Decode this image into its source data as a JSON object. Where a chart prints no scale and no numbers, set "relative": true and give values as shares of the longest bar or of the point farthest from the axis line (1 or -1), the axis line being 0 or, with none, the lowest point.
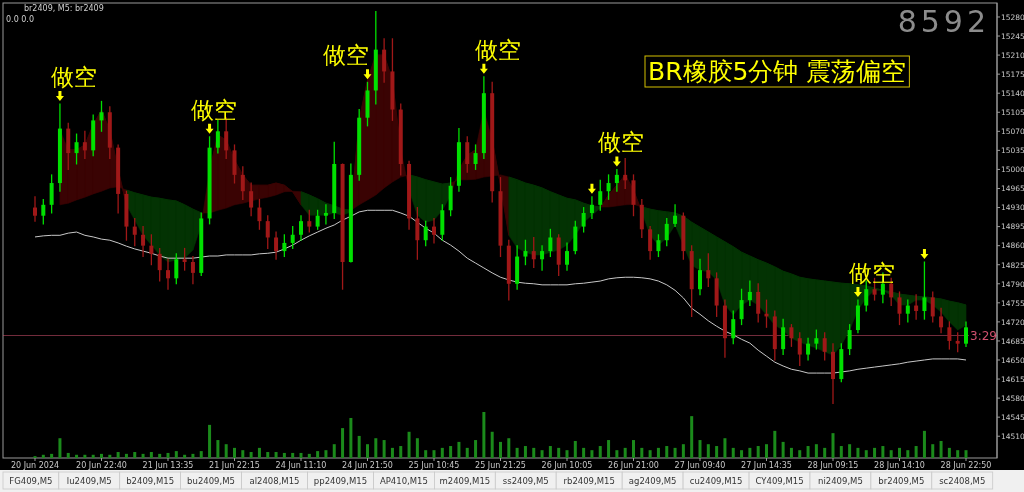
{
  "chart_data": [
    {
      "type": "candlestick",
      "title": "BR橡胶5分钟 震荡偏空",
      "subtitle": "br2409, M5:  br2409",
      "annotations": [
        "0.0  0.0",
        "8592",
        "3:29",
        "做空",
        "做空",
        "做空",
        "做空",
        "做空",
        "做空",
        "FG409,M5",
        "lu2409,M5",
        "b2409,M15",
        "bu2409,M5",
        "al2408,M15",
        "pp2409,M15",
        "AP410,M15",
        "m2409,M15",
        "ss2409,M5",
        "rb2409,M15",
        "ag2409,M5",
        "cu2409,M15",
        "CY409,M15",
        "ni2409,M5",
        "br2409,M5",
        "sc2408,M5"
      ],
      "categories": [
        "20 Jun 2024",
        null,
        null,
        null,
        null,
        null,
        null,
        null,
        "20 Jun 22:40",
        null,
        null,
        null,
        null,
        null,
        null,
        null,
        "21 Jun 13:35",
        null,
        null,
        null,
        null,
        null,
        null,
        null,
        "21 Jun 22:15",
        null,
        null,
        null,
        null,
        null,
        null,
        null,
        "24 Jun 11:10",
        null,
        null,
        null,
        null,
        null,
        null,
        null,
        "24 Jun 21:50",
        null,
        null,
        null,
        null,
        null,
        null,
        null,
        "25 Jun 10:45",
        null,
        null,
        null,
        null,
        null,
        null,
        null,
        "25 Jun 21:25",
        null,
        null,
        null,
        null,
        null,
        null,
        null,
        "26 Jun 10:05",
        null,
        null,
        null,
        null,
        null,
        null,
        null,
        "26 Jun 21:00",
        null,
        null,
        null,
        null,
        null,
        null,
        null,
        "27 Jun 09:40",
        null,
        null,
        null,
        null,
        null,
        null,
        null,
        "27 Jun 14:35",
        null,
        null,
        null,
        null,
        null,
        null,
        null,
        "28 Jun 09:15",
        null,
        null,
        null,
        null,
        null,
        null,
        null,
        "28 Jun 14:10",
        null,
        null,
        null,
        null,
        null,
        null,
        null,
        "28 Jun 22:50"
      ],
      "ylim": [
        14470,
        15302
      ],
      "yticks": [
        15280,
        15245,
        15210,
        15175,
        15140,
        15105,
        15070,
        15035,
        15000,
        14965,
        14930,
        14895,
        14860,
        14825,
        14790,
        14755,
        14720,
        14685,
        14650,
        14615,
        14580,
        14545,
        14510
      ],
      "ref_lines": [
        {
          "axis": "y",
          "value": 14695,
          "color": "#d0506e"
        }
      ],
      "series": [
        {
          "type": "line",
          "color": "#3a0303",
          "upper": [
            null,
            null,
            null,
            15072,
            15036,
            15036,
            15045,
            15082,
            15109,
            15072,
            14999,
            14935,
            null,
            null,
            null,
            null,
            null,
            null,
            null,
            null,
            14898,
            14999,
            15063,
            15054,
            15017,
            14990,
            14971,
            14971,
            14971,
            14975,
            14971,
            14959,
            14935,
            null,
            null,
            null,
            null,
            null,
            14922,
            15091,
            15164,
            15210,
            15210,
            15164,
            15036,
            14962,
            null,
            null,
            null,
            null,
            14953,
            14999,
            15026,
            15036,
            15109,
            15054,
            14971,
            14879,
            null,
            null,
            null,
            null,
            null,
            null,
            null,
            null,
            null,
            null,
            14929,
            14953,
            14971,
            14990,
            14962,
            14922,
            null,
            null,
            null,
            null,
            null,
            null,
            null,
            null,
            null,
            null,
            null,
            null,
            null,
            null,
            null,
            null,
            null,
            null,
            null,
            null,
            null,
            null,
            null,
            null,
            null,
            null,
            null,
            null,
            null,
            null,
            null,
            null,
            null,
            null,
            null,
            null,
            null,
            null,
            null
          ],
          "values": [
            null,
            null,
            null,
            null,
            15036,
            15036,
            15045,
            15082,
            15109,
            15072,
            14999,
            14935,
            null,
            null,
            null,
            null,
            null,
            null,
            null,
            null,
            null,
            14999,
            15063,
            15054,
            15017,
            14990,
            14971,
            14971,
            14971,
            14975,
            14971,
            14959,
            14935,
            null,
            null,
            null,
            null,
            null,
            14922,
            15091,
            15164,
            15210,
            15210,
            15164,
            15036,
            null,
            null,
            null,
            null,
            null,
            null,
            14999,
            15026,
            15036,
            null,
            15054,
            14971,
            14879,
            null,
            null,
            null,
            null,
            null,
            null,
            null,
            null,
            null,
            null,
            14929,
            14953,
            14971,
            14990,
            14962,
            14922,
            null,
            null,
            null,
            null,
            null,
            null,
            null,
            null,
            null,
            null,
            null,
            null,
            null,
            null,
            null,
            null,
            null,
            null,
            null,
            null,
            null,
            null,
            null,
            null,
            null,
            null,
            null,
            null,
            null,
            null,
            null,
            null,
            null,
            null,
            null,
            null,
            null,
            null,
            null
          ],
          "lower": [
            null,
            null,
            null,
            14935,
            14938,
            14944,
            14949,
            14955,
            14960,
            14966,
            14968,
            14962,
            null,
            null,
            null,
            null,
            null,
            null,
            null,
            null,
            14920,
            14920,
            14925,
            14929,
            14935,
            14938,
            14942,
            14946,
            14949,
            14953,
            14959,
            14960,
            14959,
            null,
            null,
            null,
            null,
            null,
            14925,
            14935,
            14944,
            14953,
            14966,
            14977,
            14986,
            14990,
            null,
            null,
            null,
            null,
            14975,
            14981,
            14981,
            14982,
            14986,
            14988,
            14990,
            14986,
            null,
            null,
            null,
            null,
            null,
            null,
            null,
            null,
            null,
            null,
            14931,
            14931,
            14933,
            14935,
            14936,
            14931,
            null,
            null,
            null,
            null,
            null,
            null,
            null,
            null,
            null,
            null,
            null,
            null,
            null,
            null,
            null,
            null,
            null,
            null,
            null,
            null,
            null,
            null,
            null,
            null,
            null,
            null,
            null,
            null,
            null,
            null,
            null,
            null,
            null,
            null,
            null,
            null,
            null,
            null,
            null
          ]
        },
        {
          "type": "line",
          "color": "#033303",
          "upper": [
            null,
            null,
            null,
            null,
            null,
            null,
            null,
            null,
            null,
            null,
            null,
            14962,
            14957,
            14953,
            14949,
            14947,
            14944,
            14942,
            14935,
            14927,
            14920,
            null,
            null,
            null,
            null,
            null,
            null,
            null,
            null,
            null,
            null,
            null,
            14959,
            14953,
            14946,
            14938,
            14933,
            14927,
            14925,
            null,
            null,
            null,
            null,
            null,
            null,
            14990,
            14986,
            14981,
            14977,
            14973,
            14975,
            null,
            null,
            null,
            null,
            null,
            null,
            14986,
            14981,
            14975,
            14971,
            14966,
            14959,
            14953,
            14947,
            14944,
            14938,
            14933,
            14931,
            null,
            null,
            null,
            null,
            14931,
            14927,
            14924,
            14922,
            14920,
            14914,
            14903,
            14894,
            14885,
            14876,
            14867,
            14858,
            14848,
            14841,
            14834,
            14828,
            14821,
            14813,
            14808,
            14802,
            14799,
            14797,
            14795,
            14793,
            14791,
            14790,
            14788,
            14786,
            14782,
            14778,
            14775,
            14771,
            14769,
            14767,
            14766,
            14764,
            14762,
            14758,
            14755,
            14751
          ],
          "values": [
            null,
            null,
            null,
            null,
            null,
            null,
            null,
            null,
            null,
            null,
            null,
            14962,
            14957,
            14953,
            14949,
            14947,
            14944,
            14942,
            14935,
            14927,
            14920,
            null,
            null,
            null,
            null,
            null,
            null,
            null,
            null,
            null,
            null,
            null,
            14959,
            14953,
            14946,
            14938,
            14933,
            14927,
            14925,
            null,
            null,
            null,
            null,
            null,
            null,
            14990,
            14986,
            14981,
            14977,
            14973,
            14975,
            null,
            null,
            null,
            null,
            null,
            null,
            14986,
            14981,
            14975,
            14971,
            14966,
            14959,
            14953,
            14947,
            14944,
            14938,
            14933,
            14931,
            null,
            null,
            null,
            null,
            14931,
            14927,
            14924,
            14922,
            14920,
            14914,
            14903,
            14894,
            14885,
            14876,
            14867,
            14858,
            14848,
            14841,
            14834,
            14828,
            14821,
            14813,
            14808,
            14802,
            14799,
            14797,
            14795,
            14793,
            14791,
            14790,
            14788,
            14786,
            14782,
            14778,
            14775,
            14771,
            14769,
            14767,
            14766,
            14764,
            14762,
            14758,
            14755,
            14751
          ],
          "lower": [
            null,
            null,
            null,
            null,
            null,
            null,
            null,
            null,
            null,
            null,
            null,
            14935,
            14907,
            14879,
            14861,
            14843,
            14830,
            14834,
            14837,
            14852,
            14898,
            null,
            null,
            null,
            null,
            null,
            null,
            null,
            null,
            null,
            null,
            null,
            14935,
            14916,
            14916,
            14916,
            14920,
            14916,
            14922,
            null,
            null,
            null,
            null,
            null,
            null,
            14962,
            14916,
            14903,
            14907,
            14925,
            14953,
            null,
            null,
            null,
            null,
            null,
            null,
            14879,
            14856,
            14848,
            14843,
            14843,
            14848,
            14852,
            14861,
            14879,
            14903,
            14916,
            14929,
            null,
            null,
            null,
            null,
            14922,
            14879,
            14861,
            14874,
            14898,
            14861,
            14824,
            14815,
            14812,
            14797,
            14751,
            14733,
            14751,
            14760,
            14751,
            14733,
            14714,
            14705,
            14690,
            14683,
            14677,
            14672,
            14665,
            14659,
            14677,
            14705,
            14742,
            14764,
            14778,
            14778,
            14769,
            14751,
            14751,
            14760,
            14760,
            14751,
            14738,
            14720,
            14705,
            14714
          ]
        },
        {
          "type": "line",
          "color": "#c8c8c8",
          "values": [
            14876,
            14878,
            14879,
            14879,
            14883,
            14885,
            14879,
            14876,
            14872,
            14870,
            14865,
            14859,
            14854,
            14850,
            14846,
            14841,
            14837,
            14837,
            14837,
            14837,
            14839,
            14841,
            14841,
            14843,
            14843,
            14843,
            14843,
            14845,
            14846,
            14848,
            14854,
            14861,
            14870,
            14878,
            14885,
            14892,
            14898,
            14907,
            14914,
            14922,
            14925,
            14925,
            14925,
            14925,
            14920,
            14914,
            14903,
            14892,
            14883,
            14870,
            14861,
            14850,
            14837,
            14828,
            14819,
            14810,
            14802,
            14797,
            14793,
            14791,
            14790,
            14788,
            14788,
            14788,
            14788,
            14790,
            14791,
            14793,
            14795,
            14799,
            14801,
            14802,
            14802,
            14801,
            14799,
            14795,
            14788,
            14778,
            14764,
            14745,
            14734,
            14722,
            14712,
            14703,
            14696,
            14688,
            14681,
            14668,
            14657,
            14646,
            14639,
            14633,
            14630,
            14626,
            14626,
            14626,
            14626,
            14628,
            14630,
            14633,
            14635,
            14637,
            14639,
            14641,
            14643,
            14646,
            14648,
            14650,
            14652,
            14652,
            14652,
            14652,
            14650
          ]
        },
        {
          "type": "candlestick",
          "ohlc": [
            [
              14930,
              14950,
              14905,
              14915
            ],
            [
              14915,
              14945,
              14900,
              14935
            ],
            [
              14935,
              14990,
              14920,
              14975
            ],
            [
              14975,
              15120,
              14960,
              15075
            ],
            [
              15075,
              15085,
              15000,
              15030
            ],
            [
              15030,
              15065,
              15010,
              15050
            ],
            [
              15050,
              15070,
              15020,
              15035
            ],
            [
              15035,
              15100,
              15025,
              15090
            ],
            [
              15090,
              15125,
              15070,
              15105
            ],
            [
              15105,
              15115,
              15020,
              15040
            ],
            [
              15040,
              15045,
              14920,
              14955
            ],
            [
              14955,
              14960,
              14870,
              14895
            ],
            [
              14895,
              14910,
              14860,
              14880
            ],
            [
              14880,
              14895,
              14840,
              14860
            ],
            [
              14860,
              14880,
              14825,
              14845
            ],
            [
              14845,
              14855,
              14795,
              14815
            ],
            [
              14815,
              14835,
              14780,
              14800
            ],
            [
              14800,
              14845,
              14790,
              14835
            ],
            [
              14835,
              14855,
              14815,
              14830
            ],
            [
              14830,
              14840,
              14790,
              14810
            ],
            [
              14810,
              14920,
              14805,
              14910
            ],
            [
              14910,
              15060,
              14900,
              15040
            ],
            [
              15040,
              15090,
              15030,
              15070
            ],
            [
              15070,
              15095,
              15020,
              15035
            ],
            [
              15035,
              15045,
              14975,
              14990
            ],
            [
              14990,
              15005,
              14945,
              14960
            ],
            [
              14960,
              14975,
              14915,
              14930
            ],
            [
              14930,
              14945,
              14890,
              14905
            ],
            [
              14905,
              14915,
              14855,
              14875
            ],
            [
              14875,
              14885,
              14835,
              14850
            ],
            [
              14850,
              14880,
              14840,
              14865
            ],
            [
              14865,
              14895,
              14855,
              14880
            ],
            [
              14880,
              14915,
              14870,
              14905
            ],
            [
              14905,
              14925,
              14885,
              14895
            ],
            [
              14895,
              14925,
              14890,
              14915
            ],
            [
              14915,
              14935,
              14900,
              14920
            ],
            [
              14920,
              15050,
              14910,
              15010
            ],
            [
              15010,
              15010,
              14780,
              14830
            ],
            [
              14830,
              15010,
              14830,
              14990
            ],
            [
              14990,
              15110,
              14980,
              15095
            ],
            [
              15095,
              15160,
              15080,
              15145
            ],
            [
              15145,
              15290,
              15120,
              15220
            ],
            [
              15220,
              15240,
              15160,
              15180
            ],
            [
              15180,
              15240,
              15090,
              15110
            ],
            [
              15110,
              15120,
              14990,
              15010
            ],
            [
              15010,
              15015,
              14890,
              14910
            ],
            [
              14910,
              14930,
              14835,
              14870
            ],
            [
              14870,
              14905,
              14860,
              14895
            ],
            [
              14895,
              14910,
              14865,
              14880
            ],
            [
              14880,
              14935,
              14870,
              14925
            ],
            [
              14925,
              14985,
              14915,
              14970
            ],
            [
              14970,
              15075,
              14960,
              15050
            ],
            [
              15050,
              15060,
              14995,
              15010
            ],
            [
              15010,
              15045,
              15000,
              15030
            ],
            [
              15030,
              15170,
              15020,
              15140
            ],
            [
              15140,
              15160,
              14940,
              14960
            ],
            [
              14960,
              14985,
              14840,
              14860
            ],
            [
              14860,
              14870,
              14760,
              14790
            ],
            [
              14790,
              14860,
              14780,
              14840
            ],
            [
              14840,
              14870,
              14825,
              14850
            ],
            [
              14850,
              14875,
              14820,
              14835
            ],
            [
              14835,
              14860,
              14815,
              14850
            ],
            [
              14850,
              14890,
              14840,
              14875
            ],
            [
              14875,
              14880,
              14805,
              14825
            ],
            [
              14825,
              14865,
              14815,
              14850
            ],
            [
              14850,
              14905,
              14845,
              14895
            ],
            [
              14895,
              14930,
              14885,
              14920
            ],
            [
              14920,
              14950,
              14910,
              14935
            ],
            [
              14935,
              14980,
              14925,
              14960
            ],
            [
              14960,
              14990,
              14945,
              14975
            ],
            [
              14975,
              15000,
              14960,
              14990
            ],
            [
              14990,
              15020,
              14965,
              14980
            ],
            [
              14980,
              14990,
              14915,
              14935
            ],
            [
              14935,
              14945,
              14875,
              14890
            ],
            [
              14890,
              14895,
              14835,
              14850
            ],
            [
              14850,
              14880,
              14840,
              14870
            ],
            [
              14870,
              14910,
              14860,
              14900
            ],
            [
              14900,
              14935,
              14895,
              14915
            ],
            [
              14915,
              14920,
              14835,
              14850
            ],
            [
              14850,
              14860,
              14730,
              14780
            ],
            [
              14780,
              14835,
              14770,
              14815
            ],
            [
              14815,
              14845,
              14785,
              14800
            ],
            [
              14800,
              14810,
              14730,
              14750
            ],
            [
              14750,
              14760,
              14655,
              14690
            ],
            [
              14690,
              14740,
              14680,
              14725
            ],
            [
              14725,
              14780,
              14715,
              14760
            ],
            [
              14760,
              14795,
              14750,
              14775
            ],
            [
              14775,
              14790,
              14720,
              14735
            ],
            [
              14735,
              14760,
              14710,
              14730
            ],
            [
              14730,
              14740,
              14650,
              14670
            ],
            [
              14670,
              14725,
              14660,
              14710
            ],
            [
              14710,
              14715,
              14675,
              14690
            ],
            [
              14690,
              14700,
              14640,
              14660
            ],
            [
              14660,
              14690,
              14650,
              14680
            ],
            [
              14680,
              14705,
              14670,
              14690
            ],
            [
              14690,
              14700,
              14650,
              14665
            ],
            [
              14665,
              14680,
              14570,
              14615
            ],
            [
              14615,
              14680,
              14610,
              14670
            ],
            [
              14670,
              14715,
              14660,
              14705
            ],
            [
              14705,
              14760,
              14700,
              14750
            ],
            [
              14750,
              14795,
              14740,
              14780
            ],
            [
              14780,
              14800,
              14760,
              14770
            ],
            [
              14770,
              14810,
              14755,
              14790
            ],
            [
              14790,
              14800,
              14750,
              14765
            ],
            [
              14765,
              14775,
              14715,
              14735
            ],
            [
              14735,
              14760,
              14720,
              14750
            ],
            [
              14750,
              14770,
              14725,
              14740
            ],
            [
              14740,
              14830,
              14725,
              14765
            ],
            [
              14765,
              14775,
              14720,
              14730
            ],
            [
              14730,
              14745,
              14700,
              14710
            ],
            [
              14710,
              14720,
              14670,
              14685
            ],
            [
              14685,
              14700,
              14665,
              14680
            ],
            [
              14680,
              14720,
              14675,
              14710
            ]
          ],
          "colors": [
            "#a01818",
            "#00e000",
            "#00e000",
            "#00e000",
            "#a01818",
            "#00e000",
            "#a01818",
            "#00e000",
            "#00e000",
            "#a01818",
            "#a01818",
            "#a01818",
            "#a01818",
            "#a01818",
            "#a01818",
            "#a01818",
            "#a01818",
            "#00e000",
            "#a01818",
            "#a01818",
            "#00e000",
            "#00e000",
            "#00e000",
            "#a01818",
            "#a01818",
            "#a01818",
            "#a01818",
            "#a01818",
            "#a01818",
            "#a01818",
            "#00e000",
            "#00e000",
            "#00e000",
            "#a01818",
            "#00e000",
            "#00e000",
            "#00e000",
            "#a01818",
            "#00e000",
            "#00e000",
            "#00e000",
            "#00e000",
            "#a01818",
            "#a01818",
            "#a01818",
            "#a01818",
            "#a01818",
            "#00e000",
            "#a01818",
            "#00e000",
            "#00e000",
            "#00e000",
            "#a01818",
            "#00e000",
            "#00e000",
            "#a01818",
            "#a01818",
            "#a01818",
            "#00e000",
            "#00e000",
            "#a01818",
            "#00e000",
            "#00e000",
            "#a01818",
            "#00e000",
            "#00e000",
            "#00e000",
            "#00e000",
            "#00e000",
            "#00e000",
            "#00e000",
            "#a01818",
            "#a01818",
            "#a01818",
            "#a01818",
            "#00e000",
            "#00e000",
            "#00e000",
            "#a01818",
            "#a01818",
            "#00e000",
            "#a01818",
            "#a01818",
            "#a01818",
            "#00e000",
            "#00e000",
            "#00e000",
            "#a01818",
            "#a01818",
            "#a01818",
            "#00e000",
            "#a01818",
            "#a01818",
            "#00e000",
            "#00e000",
            "#a01818",
            "#a01818",
            "#00e000",
            "#00e000",
            "#00e000",
            "#00e000",
            "#a01818",
            "#00e000",
            "#a01818",
            "#a01818",
            "#00e000",
            "#a01818",
            "#00e000",
            "#a01818",
            "#a01818",
            "#a01818",
            "#a01818",
            "#00e000"
          ]
        }
      ]
    },
    {
      "type": "bar",
      "relative": true,
      "color": "#1b8a1b",
      "categories": [
        null,
        null,
        null,
        null,
        null,
        null,
        null,
        null,
        null,
        null,
        null,
        null,
        null,
        null,
        null,
        null,
        null,
        null,
        null,
        null,
        null,
        null,
        null,
        null,
        null,
        null,
        null,
        null,
        null,
        null,
        null,
        null,
        null,
        null,
        null,
        null,
        null,
        null,
        null,
        null,
        null,
        null,
        null,
        null,
        null,
        null,
        null,
        null,
        null,
        null,
        null,
        null,
        null,
        null,
        null,
        null,
        null,
        null,
        null,
        null,
        null,
        null,
        null,
        null,
        null,
        null,
        null,
        null,
        null,
        null,
        null,
        null,
        null,
        null,
        null,
        null,
        null,
        null,
        null,
        null,
        null,
        null,
        null,
        null,
        null,
        null,
        null,
        null,
        null,
        null,
        null,
        null,
        null,
        null,
        null,
        null,
        null,
        null,
        null,
        null,
        null,
        null,
        null,
        null,
        null,
        null,
        null,
        null,
        null,
        null,
        null,
        null,
        null
      ],
      "values": [
        0.04,
        0.07,
        0.09,
        0.43,
        0.11,
        0.07,
        0.07,
        0.07,
        0.09,
        0.07,
        0.13,
        0.09,
        0.13,
        0.09,
        0.13,
        0.09,
        0.11,
        0.15,
        0.07,
        0.09,
        0.15,
        0.72,
        0.39,
        0.3,
        0.22,
        0.17,
        0.13,
        0.22,
        0.13,
        0.13,
        0.11,
        0.11,
        0.11,
        0.09,
        0.15,
        0.17,
        0.3,
        0.65,
        0.87,
        0.48,
        0.3,
        0.43,
        0.39,
        0.22,
        0.26,
        0.57,
        0.43,
        0.17,
        0.17,
        0.22,
        0.26,
        0.35,
        0.22,
        0.39,
        1,
        0.57,
        0.35,
        0.43,
        0.22,
        0.26,
        0.22,
        0.17,
        0.26,
        0.22,
        0.17,
        0.37,
        0.22,
        0.17,
        0.26,
        0.39,
        0.17,
        0.22,
        0.39,
        0.22,
        0.17,
        0.22,
        0.26,
        0.22,
        0.3,
        0.91,
        0.39,
        0.3,
        0.26,
        0.43,
        0.22,
        0.17,
        0.22,
        0.26,
        0.3,
        0.59,
        0.35,
        0.22,
        0.17,
        0.26,
        0.3,
        0.22,
        0.54,
        0.26,
        0.3,
        0.22,
        0.17,
        0.22,
        0.26,
        0.17,
        0.22,
        0.17,
        0.26,
        0.59,
        0.3,
        0.37,
        0.22,
        0.17,
        0.17
      ]
    }
  ]
}
